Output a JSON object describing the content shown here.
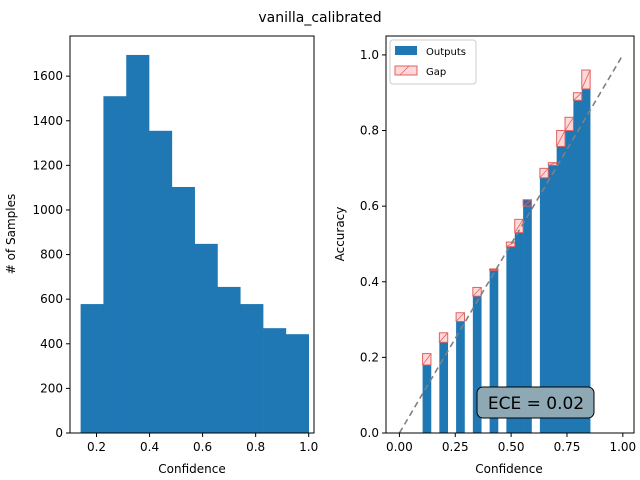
{
  "title": "vanilla_calibrated",
  "colors": {
    "bar": "#1f77b4",
    "gap_fill": "#ff000026",
    "gap_edge": "#e06060",
    "diag": "#808080",
    "ece_box": "#8fa9b4"
  },
  "chart_data": [
    {
      "type": "bar",
      "name": "histogram",
      "xlabel": "Confidence",
      "ylabel": "# of Samples",
      "xlim": [
        0.1,
        1.02
      ],
      "ylim": [
        0,
        1780
      ],
      "xticks": [
        0.2,
        0.4,
        0.6,
        0.8,
        1.0
      ],
      "xtick_labels": [
        "0.2",
        "0.4",
        "0.6",
        "0.8",
        "1.0"
      ],
      "yticks": [
        0,
        200,
        400,
        600,
        800,
        1000,
        1200,
        1400,
        1600
      ],
      "yticks_labels": [
        "0",
        "200",
        "400",
        "600",
        "800",
        "1000",
        "1200",
        "1400",
        "1600"
      ],
      "bins": [
        {
          "x0": 0.14,
          "x1": 0.226,
          "count": 578
        },
        {
          "x0": 0.226,
          "x1": 0.312,
          "count": 1510
        },
        {
          "x0": 0.312,
          "x1": 0.398,
          "count": 1695
        },
        {
          "x0": 0.398,
          "x1": 0.484,
          "count": 1355
        },
        {
          "x0": 0.484,
          "x1": 0.57,
          "count": 1103
        },
        {
          "x0": 0.57,
          "x1": 0.656,
          "count": 848
        },
        {
          "x0": 0.656,
          "x1": 0.742,
          "count": 655
        },
        {
          "x0": 0.742,
          "x1": 0.828,
          "count": 578
        },
        {
          "x0": 0.828,
          "x1": 0.914,
          "count": 470
        },
        {
          "x0": 0.914,
          "x1": 1.0,
          "count": 443
        }
      ]
    },
    {
      "type": "bar",
      "name": "reliability",
      "xlabel": "Confidence",
      "ylabel": "Accuracy",
      "xlim": [
        -0.06,
        1.05
      ],
      "ylim": [
        0,
        1.05
      ],
      "xticks": [
        0.0,
        0.25,
        0.5,
        0.75,
        1.0
      ],
      "xtick_labels": [
        "0.00",
        "0.25",
        "0.50",
        "0.75",
        "1.00"
      ],
      "yticks": [
        0,
        0.2,
        0.4,
        0.6,
        0.8,
        1.0
      ],
      "ytick_labels": [
        "0.0",
        "0.2",
        "0.4",
        "0.6",
        "0.8",
        "1.0"
      ],
      "legend": {
        "position": "top-left",
        "entries": [
          "Outputs",
          "Gap"
        ]
      },
      "annotation": "ECE = 0.02",
      "bin_width": 0.0375,
      "bins": [
        {
          "center": 0.1225,
          "accuracy": 0.18,
          "confidence": 0.21
        },
        {
          "center": 0.16,
          "accuracy": 0.0,
          "confidence": 0.0
        },
        {
          "center": 0.1975,
          "accuracy": 0.24,
          "confidence": 0.265
        },
        {
          "center": 0.235,
          "accuracy": 0.0,
          "confidence": 0.0
        },
        {
          "center": 0.2725,
          "accuracy": 0.295,
          "confidence": 0.318
        },
        {
          "center": 0.31,
          "accuracy": 0.0,
          "confidence": 0.0
        },
        {
          "center": 0.3475,
          "accuracy": 0.362,
          "confidence": 0.385
        },
        {
          "center": 0.385,
          "accuracy": 0.0,
          "confidence": 0.0
        },
        {
          "center": 0.4225,
          "accuracy": 0.434,
          "confidence": 0.43
        },
        {
          "center": 0.46,
          "accuracy": 0.0,
          "confidence": 0.0
        },
        {
          "center": 0.4975,
          "accuracy": 0.493,
          "confidence": 0.505
        },
        {
          "center": 0.535,
          "accuracy": 0.53,
          "confidence": 0.565
        },
        {
          "center": 0.5725,
          "accuracy": 0.617,
          "confidence": 0.6
        },
        {
          "center": 0.61,
          "accuracy": 0.0,
          "confidence": 0.0
        },
        {
          "center": 0.6475,
          "accuracy": 0.675,
          "confidence": 0.7
        },
        {
          "center": 0.685,
          "accuracy": 0.708,
          "confidence": 0.715
        },
        {
          "center": 0.7225,
          "accuracy": 0.758,
          "confidence": 0.8
        },
        {
          "center": 0.76,
          "accuracy": 0.8,
          "confidence": 0.835
        },
        {
          "center": 0.7975,
          "accuracy": 0.88,
          "confidence": 0.9
        },
        {
          "center": 0.835,
          "accuracy": 0.91,
          "confidence": 0.96
        }
      ]
    }
  ]
}
